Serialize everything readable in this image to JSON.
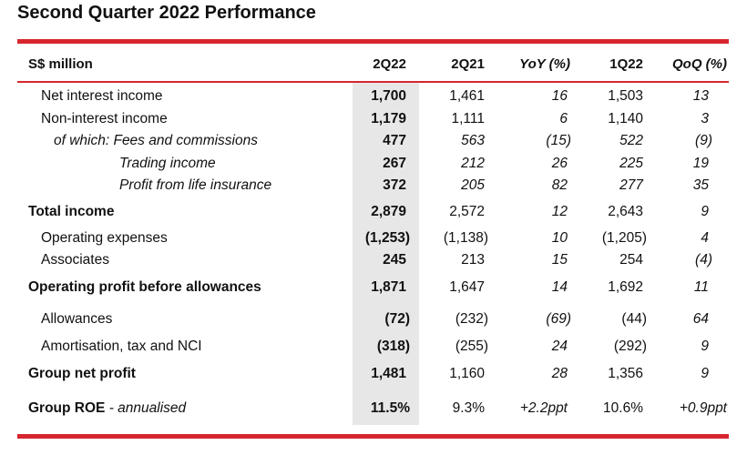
{
  "title": "Second Quarter 2022 Performance",
  "colors": {
    "accent_red": "#d7262e",
    "highlight_column": "#e7e7e7"
  },
  "table": {
    "header": {
      "label": "S$ million",
      "c1": "2Q22",
      "c2": "2Q21",
      "c3": "YoY (%)",
      "c4": "1Q22",
      "c5": "QoQ (%)"
    },
    "rows": [
      {
        "label": "Net interest income",
        "c1": "1,700",
        "c2": "1,461",
        "c3": "16",
        "c4": "1,503",
        "c5": "13"
      },
      {
        "label": "Non-interest income",
        "c1": "1,179",
        "c2": "1,111",
        "c3": "6",
        "c4": "1,140",
        "c5": "3"
      },
      {
        "label": "of which: Fees and commissions",
        "c1": "477",
        "c2": "563",
        "c3": "(15)",
        "c4": "522",
        "c5": "(9)"
      },
      {
        "label": "Trading income",
        "c1": "267",
        "c2": "212",
        "c3": "26",
        "c4": "225",
        "c5": "19"
      },
      {
        "label": "Profit from life insurance",
        "c1": "372",
        "c2": "205",
        "c3": "82",
        "c4": "277",
        "c5": "35"
      },
      {
        "label": "Total income",
        "c1": "2,879",
        "c2": "2,572",
        "c3": "12",
        "c4": "2,643",
        "c5": "9"
      },
      {
        "label": "Operating expenses",
        "c1": "(1,253)",
        "c2": "(1,138)",
        "c3": "10",
        "c4": "(1,205)",
        "c5": "4"
      },
      {
        "label": "Associates",
        "c1": "245",
        "c2": "213",
        "c3": "15",
        "c4": "254",
        "c5": "(4)"
      },
      {
        "label": "Operating profit before allowances",
        "c1": "1,871",
        "c2": "1,647",
        "c3": "14",
        "c4": "1,692",
        "c5": "11"
      },
      {
        "label": "Allowances",
        "c1": "(72)",
        "c2": "(232)",
        "c3": "(69)",
        "c4": "(44)",
        "c5": "64"
      },
      {
        "label": "Amortisation, tax and NCI",
        "c1": "(318)",
        "c2": "(255)",
        "c3": "24",
        "c4": "(292)",
        "c5": "9"
      },
      {
        "label": "Group net profit",
        "c1": "1,481",
        "c2": "1,160",
        "c3": "28",
        "c4": "1,356",
        "c5": "9"
      },
      {
        "label": "Group ROE",
        "label_suffix": " - annualised",
        "c1": "11.5%",
        "c2": "9.3%",
        "c3": "+2.2ppt",
        "c4": "10.6%",
        "c5": "+0.9ppt"
      }
    ]
  }
}
